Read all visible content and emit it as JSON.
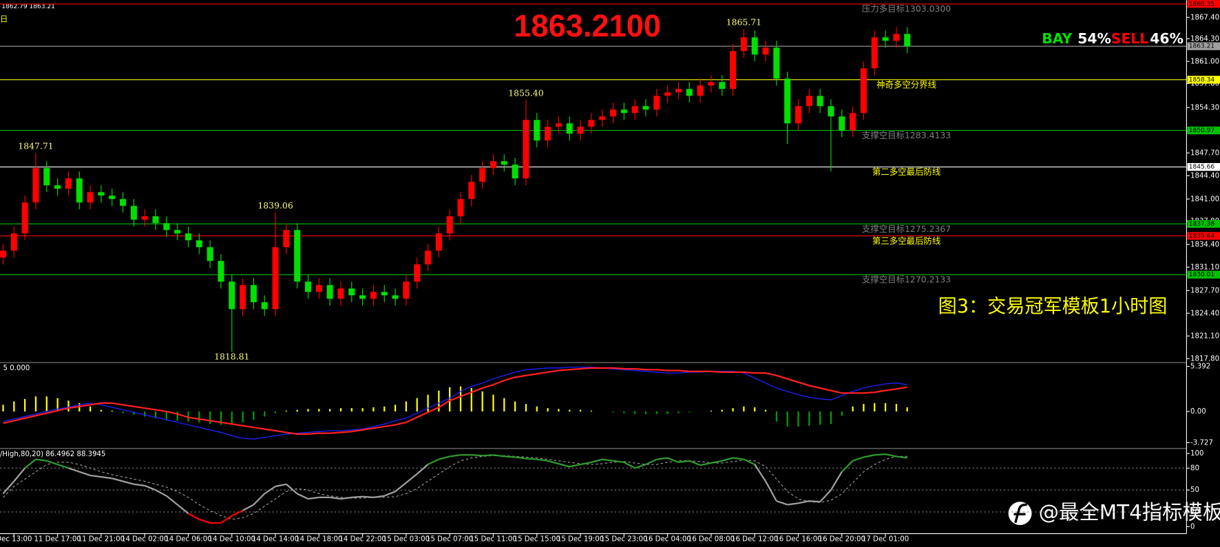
{
  "header": {
    "quote": "1862.79 1863.21",
    "period": "日"
  },
  "chart_data": [
    {
      "type": "candlestick",
      "title": "1863.2100",
      "categories": [
        null,
        "Dec 13:00",
        null,
        null,
        null,
        "11 Dec 17:00",
        null,
        null,
        null,
        "11 Dec 21:00",
        null,
        null,
        null,
        "14 Dec 02:00",
        null,
        null,
        null,
        "14 Dec 06:00",
        null,
        null,
        null,
        "14 Dec 10:00",
        null,
        null,
        null,
        "14 Dec 14:00",
        null,
        null,
        null,
        "14 Dec 18:00",
        null,
        null,
        null,
        "14 Dec 22:00",
        null,
        null,
        null,
        "15 Dec 03:00",
        null,
        null,
        null,
        "15 Dec 07:00",
        null,
        null,
        null,
        "15 Dec 11:00",
        null,
        null,
        null,
        "15 Dec 15:00",
        null,
        null,
        null,
        "15 Dec 19:00",
        null,
        null,
        null,
        "15 Dec 23:00",
        null,
        null,
        null,
        "16 Dec 04:00",
        null,
        null,
        null,
        "16 Dec 08:00",
        null,
        null,
        null,
        "16 Dec 12:00",
        null,
        null,
        null,
        "16 Dec 16:00",
        null,
        null,
        null,
        "16 Dec 20:00",
        null,
        null,
        null,
        "17 Dec 01:00",
        null,
        null
      ],
      "open": [
        1832.5,
        1833.5,
        1836.0,
        1840.5,
        1845.5,
        1843.0,
        1842.5,
        1844.0,
        1840.5,
        1842.0,
        1841.5,
        1841.0,
        1840.0,
        1838.0,
        1838.5,
        1837.5,
        1836.5,
        1836.0,
        1835.0,
        1834.0,
        1832.0,
        1829.0,
        1825.0,
        1828.5,
        1826.0,
        1825.0,
        1834.0,
        1836.5,
        1829.0,
        1827.5,
        1828.5,
        1826.5,
        1828.0,
        1827.0,
        1826.5,
        1827.5,
        1827.0,
        1826.5,
        1829.0,
        1831.5,
        1833.5,
        1836.0,
        1838.5,
        1841.0,
        1843.5,
        1845.5,
        1846.5,
        1846.0,
        1844.0,
        1852.5,
        1849.5,
        1851.5,
        1852.0,
        1850.5,
        1851.5,
        1852.5,
        1853.0,
        1854.0,
        1853.5,
        1854.5,
        1854.0,
        1856.0,
        1856.5,
        1857.0,
        1856.0,
        1857.5,
        1858.0,
        1857.0,
        1862.5,
        1864.5,
        1862.0,
        1863.0,
        1858.5,
        1852.0,
        1854.5,
        1856.0,
        1854.5,
        1853.0,
        1851.0,
        1853.5,
        1860.0,
        1864.5,
        1864.0,
        1865.0
      ],
      "high": [
        1834.5,
        1837.0,
        1841.5,
        1847.71,
        1846.5,
        1844.0,
        1845.0,
        1845.0,
        1843.0,
        1843.0,
        1842.5,
        1842.0,
        1841.0,
        1839.5,
        1839.5,
        1838.5,
        1837.5,
        1837.0,
        1836.0,
        1835.0,
        1833.0,
        1830.0,
        1829.5,
        1829.5,
        1827.0,
        1839.06,
        1837.5,
        1837.5,
        1830.0,
        1829.5,
        1829.5,
        1829.0,
        1829.0,
        1828.0,
        1828.5,
        1828.5,
        1828.0,
        1830.0,
        1832.5,
        1834.5,
        1837.0,
        1839.5,
        1842.0,
        1844.5,
        1846.5,
        1847.5,
        1847.5,
        1847.0,
        1855.4,
        1853.5,
        1852.5,
        1853.0,
        1853.0,
        1852.5,
        1853.5,
        1854.0,
        1855.0,
        1855.0,
        1855.5,
        1855.5,
        1857.0,
        1857.5,
        1858.0,
        1858.0,
        1858.5,
        1859.0,
        1859.0,
        1863.5,
        1865.71,
        1865.5,
        1864.0,
        1864.0,
        1859.5,
        1855.5,
        1857.0,
        1857.0,
        1855.5,
        1854.0,
        1854.5,
        1861.0,
        1865.5,
        1865.5,
        1866.0,
        1866.0
      ],
      "low": [
        1831.5,
        1832.5,
        1835.0,
        1839.5,
        1842.0,
        1841.5,
        1841.5,
        1839.5,
        1839.5,
        1840.5,
        1840.0,
        1839.0,
        1837.0,
        1837.0,
        1836.5,
        1835.5,
        1835.0,
        1834.0,
        1833.0,
        1831.0,
        1828.0,
        1818.81,
        1824.0,
        1825.0,
        1824.0,
        1824.0,
        1833.0,
        1828.0,
        1826.5,
        1826.5,
        1825.5,
        1825.5,
        1826.0,
        1825.5,
        1825.5,
        1826.0,
        1825.5,
        1825.5,
        1828.0,
        1830.5,
        1832.5,
        1835.0,
        1837.5,
        1840.0,
        1842.5,
        1844.5,
        1845.0,
        1843.0,
        1843.0,
        1848.5,
        1848.5,
        1850.5,
        1849.5,
        1849.5,
        1850.5,
        1851.5,
        1852.0,
        1852.5,
        1852.5,
        1853.0,
        1853.0,
        1855.0,
        1855.5,
        1855.0,
        1855.0,
        1856.5,
        1856.0,
        1856.0,
        1861.5,
        1861.0,
        1861.0,
        1857.5,
        1849.0,
        1851.0,
        1853.5,
        1853.5,
        1845.0,
        1850.0,
        1850.0,
        1852.5,
        1859.0,
        1863.0,
        1863.0,
        1862.2
      ],
      "close": [
        1833.5,
        1836.0,
        1840.5,
        1845.5,
        1843.0,
        1842.5,
        1844.0,
        1840.5,
        1842.0,
        1841.5,
        1841.0,
        1840.0,
        1838.0,
        1838.5,
        1837.5,
        1836.5,
        1836.0,
        1835.0,
        1834.0,
        1832.0,
        1829.0,
        1825.0,
        1828.5,
        1826.0,
        1825.0,
        1834.0,
        1836.5,
        1829.0,
        1827.5,
        1828.5,
        1826.5,
        1828.0,
        1827.0,
        1826.5,
        1827.5,
        1827.0,
        1826.5,
        1829.0,
        1831.5,
        1833.5,
        1836.0,
        1838.5,
        1841.0,
        1843.5,
        1845.5,
        1846.5,
        1846.0,
        1844.0,
        1852.5,
        1849.5,
        1851.5,
        1852.0,
        1850.5,
        1851.5,
        1852.5,
        1853.0,
        1854.0,
        1853.5,
        1854.5,
        1854.0,
        1856.0,
        1856.5,
        1857.0,
        1856.0,
        1857.5,
        1858.0,
        1857.0,
        1862.5,
        1864.5,
        1862.0,
        1863.0,
        1858.5,
        1852.0,
        1854.5,
        1856.0,
        1854.5,
        1853.0,
        1851.0,
        1853.5,
        1860.0,
        1864.5,
        1864.0,
        1865.0,
        1863.21
      ],
      "high_labels": [
        null,
        null,
        null,
        "1847.71",
        null,
        null,
        null,
        null,
        null,
        null,
        null,
        null,
        null,
        null,
        null,
        null,
        null,
        null,
        null,
        null,
        null,
        null,
        null,
        null,
        null,
        "1839.06",
        null,
        null,
        null,
        null,
        null,
        null,
        null,
        null,
        null,
        null,
        null,
        null,
        null,
        null,
        null,
        null,
        null,
        null,
        null,
        null,
        null,
        null,
        "1855.40",
        null,
        null,
        null,
        null,
        null,
        null,
        null,
        null,
        null,
        null,
        null,
        null,
        null,
        null,
        null,
        null,
        null,
        null,
        null,
        "1865.71",
        null,
        null,
        null,
        null,
        null,
        null,
        null,
        null,
        null,
        null,
        null,
        null,
        null,
        null,
        null
      ],
      "low_labels": [
        null,
        null,
        null,
        null,
        null,
        null,
        null,
        null,
        null,
        null,
        null,
        null,
        null,
        null,
        null,
        null,
        null,
        null,
        null,
        null,
        null,
        "1818.81",
        null,
        null,
        null,
        null,
        null,
        null,
        null,
        null,
        null,
        null,
        null,
        null,
        null,
        null,
        null,
        null,
        null,
        null,
        null,
        null,
        null,
        null,
        null,
        null,
        null,
        null,
        null,
        null,
        null,
        null,
        null,
        null,
        null,
        null,
        null,
        null,
        null,
        null,
        null,
        null,
        null,
        null,
        null,
        null,
        null,
        null,
        null,
        null,
        null,
        null,
        null,
        null,
        null,
        null,
        null,
        null,
        null,
        null,
        null,
        null,
        null,
        null
      ],
      "up_color": "#ff0000",
      "down_color": "#00e000",
      "ylim": [
        1817.35,
        1869.9
      ],
      "yticks": [
        {
          "value": 1867.4,
          "label": "1867.40"
        },
        {
          "value": 1864.3,
          "label": "1864.30"
        },
        {
          "value": 1861.0,
          "label": "1861.00"
        },
        {
          "value": 1857.8,
          "label": "1857.80"
        },
        {
          "value": 1854.3,
          "label": "1854.30"
        },
        {
          "value": 1850.9,
          "label": "1850.90"
        },
        {
          "value": 1847.7,
          "label": "1847.70"
        },
        {
          "value": 1844.4,
          "label": "1844.40"
        },
        {
          "value": 1841.0,
          "label": "1841.00"
        },
        {
          "value": 1837.8,
          "label": "1837.80"
        },
        {
          "value": 1834.4,
          "label": "1834.40"
        },
        {
          "value": 1831.1,
          "label": "1831.10"
        },
        {
          "value": 1827.7,
          "label": "1827.70"
        },
        {
          "value": 1824.4,
          "label": "1824.40"
        },
        {
          "value": 1821.1,
          "label": "1821.10"
        },
        {
          "value": 1817.8,
          "label": "1817.80"
        }
      ],
      "levels": [
        {
          "value": 1869.35,
          "label": "1869.35",
          "color": "#ff0000",
          "note": "压力多目标1303.0300",
          "note_color": "#808080"
        },
        {
          "value": 1863.21,
          "label": "1863.21",
          "color": "#a0a0a0"
        },
        {
          "value": 1858.34,
          "label": "1858.34",
          "color": "#ffff00",
          "note": "神奇多空分界线",
          "note_color": "#ffff00"
        },
        {
          "value": 1850.97,
          "label": "1850.97",
          "color": "#00c000",
          "note": "支撑空目标1283.4133",
          "note_color": "#808080"
        },
        {
          "value": 1845.66,
          "label": "1845.66",
          "color": "#ffffff",
          "note": "第二多空最后防线",
          "note_color": "#ffff00"
        },
        {
          "value": 1837.38,
          "label": "1837.38",
          "color": "#00c000",
          "note": "支撑空目标1275.2367",
          "note_color": "#808080"
        },
        {
          "value": 1835.64,
          "label": "1835.64",
          "color": "#ff0000",
          "note": "第三多空最后防线",
          "note_color": "#ffff00"
        },
        {
          "value": 1830.01,
          "label": "1830.01",
          "color": "#00c000",
          "note": "支撑空目标1270.2133",
          "note_color": "#808080"
        }
      ],
      "sentiment": {
        "names": [
          "BAY",
          "SELL"
        ],
        "values": [
          54,
          46
        ],
        "value_labels": [
          "54%",
          "46%"
        ],
        "colors": [
          "#00e000",
          "#ff0000"
        ]
      },
      "caption": "图3：交易冠军模板1小时图",
      "watermark": "@最全MT4指标模板"
    },
    {
      "type": "macd",
      "title": "5 0.000",
      "macd": [
        -1.2,
        -0.9,
        -0.6,
        -0.3,
        0.0,
        0.3,
        0.5,
        0.8,
        1.0,
        0.8,
        0.5,
        0.2,
        -0.1,
        -0.4,
        -0.7,
        -1.0,
        -1.3,
        -1.6,
        -1.9,
        -2.2,
        -2.5,
        -2.9,
        -3.2,
        -3.3,
        -3.1,
        -2.9,
        -2.7,
        -2.6,
        -2.5,
        -2.4,
        -2.3,
        -2.3,
        -2.2,
        -2.1,
        -1.8,
        -1.5,
        -1.1,
        -0.8,
        -0.2,
        0.4,
        1.0,
        1.6,
        2.4,
        3.0,
        3.4,
        3.9,
        4.3,
        4.7,
        5.0,
        5.1,
        5.2,
        5.2,
        5.3,
        5.3,
        5.3,
        5.2,
        5.1,
        5.0,
        4.9,
        4.8,
        4.7,
        4.6,
        4.6,
        4.7,
        4.7,
        4.8,
        4.8,
        4.8,
        4.6,
        4.0,
        3.4,
        2.8,
        2.4,
        2.0,
        1.7,
        1.5,
        1.4,
        1.9,
        2.4,
        2.8,
        3.1,
        3.3,
        3.4,
        3.2
      ],
      "signal": [
        -1.4,
        -1.1,
        -0.8,
        -0.5,
        -0.2,
        0.1,
        0.4,
        0.6,
        0.8,
        1.0,
        1.0,
        0.8,
        0.6,
        0.4,
        0.2,
        0.0,
        -0.3,
        -0.7,
        -0.9,
        -1.1,
        -1.3,
        -1.5,
        -1.7,
        -1.9,
        -2.1,
        -2.3,
        -2.5,
        -2.7,
        -2.7,
        -2.6,
        -2.6,
        -2.5,
        -2.4,
        -2.2,
        -2.0,
        -1.8,
        -1.6,
        -1.3,
        -0.7,
        -0.1,
        0.5,
        1.3,
        1.8,
        2.3,
        2.8,
        3.2,
        3.7,
        4.1,
        4.3,
        4.5,
        4.7,
        4.9,
        5.0,
        5.1,
        5.2,
        5.2,
        5.2,
        5.1,
        5.1,
        5.0,
        5.0,
        4.9,
        4.9,
        4.8,
        4.8,
        4.8,
        4.7,
        4.7,
        4.7,
        4.6,
        4.6,
        4.3,
        3.9,
        3.5,
        3.1,
        2.8,
        2.5,
        2.2,
        2.2,
        2.2,
        2.3,
        2.5,
        2.7,
        2.9
      ],
      "histogram": [
        0.8,
        1.2,
        1.5,
        1.8,
        1.8,
        1.6,
        1.3,
        1.0,
        0.6,
        0.2,
        0.1,
        -0.2,
        -0.4,
        -0.6,
        -0.8,
        -1.0,
        -1.1,
        -1.2,
        -1.3,
        -1.5,
        -1.6,
        -1.5,
        -1.3,
        -1.0,
        -0.6,
        -0.2,
        0.1,
        0.2,
        0.3,
        0.3,
        0.3,
        0.4,
        0.4,
        0.4,
        0.5,
        0.6,
        0.8,
        1.2,
        1.6,
        2.0,
        2.5,
        2.9,
        3.0,
        2.8,
        2.4,
        2.0,
        1.6,
        1.2,
        0.9,
        0.6,
        0.4,
        0.3,
        0.2,
        0.2,
        0.1,
        0.0,
        -0.1,
        -0.2,
        -0.3,
        -0.3,
        -0.3,
        -0.3,
        -0.2,
        -0.1,
        0.0,
        0.1,
        0.2,
        0.4,
        0.6,
        0.5,
        0.2,
        -1.2,
        -1.8,
        -1.8,
        -1.7,
        -1.6,
        -1.5,
        -0.5,
        0.6,
        0.9,
        1.0,
        1.0,
        0.9,
        0.5
      ],
      "macd_color": "#2020ff",
      "signal_color": "#ff2020",
      "positive_color": "#ffff00",
      "negative_color": "#00a000",
      "ylim": [
        -4.28,
        5.76
      ],
      "yticks": [
        {
          "value": 5.392,
          "label": "5.392"
        },
        {
          "value": 0,
          "label": "0.00"
        },
        {
          "value": -3.727,
          "label": "-3.727"
        }
      ]
    },
    {
      "type": "stochastic",
      "title": "/High,80,20) 86.4962 88.3945",
      "k": [
        45,
        62,
        80,
        92,
        90,
        85,
        80,
        75,
        70,
        68,
        66,
        62,
        58,
        56,
        50,
        42,
        30,
        18,
        10,
        5,
        5,
        15,
        22,
        30,
        45,
        55,
        58,
        45,
        38,
        40,
        40,
        38,
        40,
        41,
        40,
        42,
        48,
        60,
        72,
        85,
        92,
        96,
        98,
        98,
        97,
        98,
        96,
        95,
        93,
        92,
        90,
        86,
        82,
        85,
        88,
        92,
        90,
        88,
        80,
        85,
        92,
        94,
        88,
        90,
        84,
        87,
        90,
        94,
        92,
        85,
        62,
        35,
        30,
        32,
        35,
        34,
        50,
        75,
        90,
        95,
        98,
        99,
        96,
        94
      ],
      "d": [
        40,
        55,
        65,
        75,
        85,
        88,
        88,
        85,
        80,
        75,
        71,
        68,
        65,
        62,
        58,
        54,
        48,
        40,
        30,
        22,
        15,
        10,
        12,
        18,
        28,
        38,
        48,
        52,
        50,
        45,
        42,
        40,
        39,
        39,
        40,
        40,
        41,
        45,
        52,
        62,
        72,
        82,
        90,
        94,
        96,
        97,
        97,
        96,
        95,
        94,
        92,
        90,
        88,
        86,
        85,
        86,
        88,
        89,
        87,
        85,
        85,
        88,
        90,
        90,
        89,
        87,
        87,
        89,
        91,
        90,
        82,
        65,
        48,
        38,
        34,
        33,
        36,
        45,
        60,
        75,
        85,
        92,
        96,
        96
      ],
      "upper": 80,
      "lower": 20,
      "above_color": "#2e9b2e",
      "below_color": "#ff0000",
      "between_color": "#a0a0a0",
      "d_color": "#a0a0a0",
      "ylim": [
        -8.5,
        105.3
      ],
      "yticks": [
        100,
        80,
        50,
        20,
        0
      ]
    }
  ]
}
